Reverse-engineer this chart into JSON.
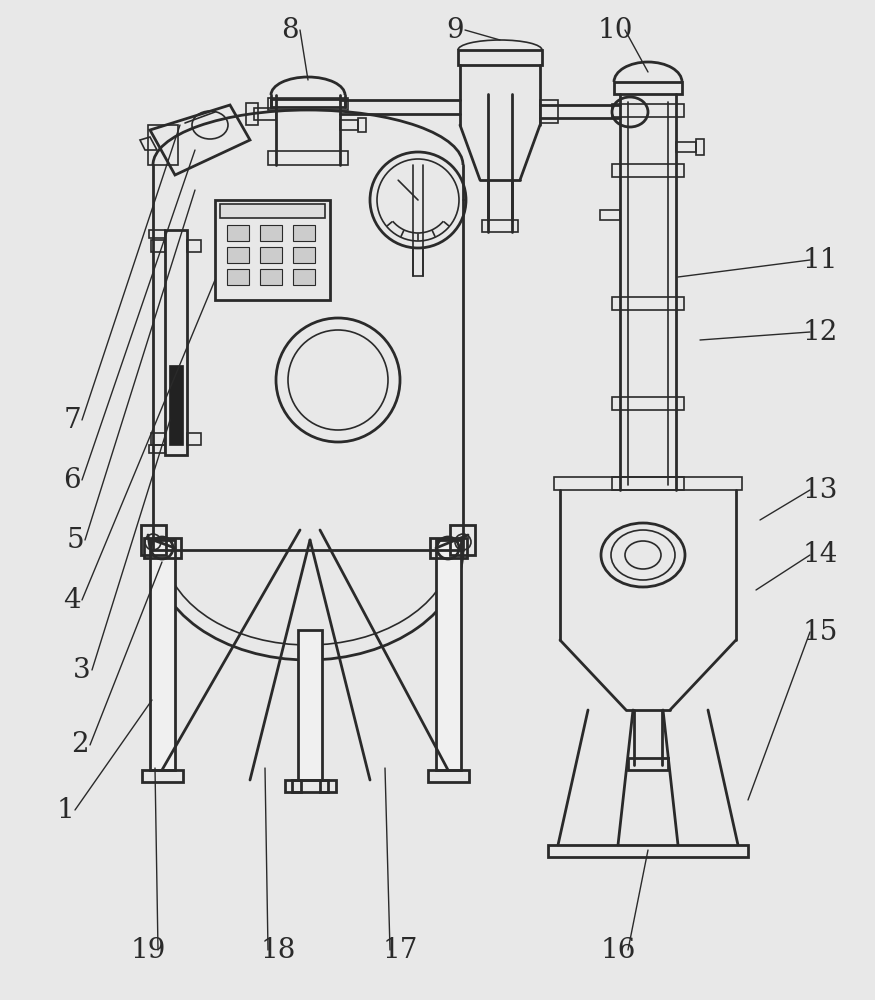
{
  "bg_color": "#e8e8e8",
  "line_color": "#2a2a2a",
  "lw_main": 2.0,
  "lw_thin": 1.2,
  "lw_label": 1.0,
  "font_size": 20,
  "font_family": "serif"
}
